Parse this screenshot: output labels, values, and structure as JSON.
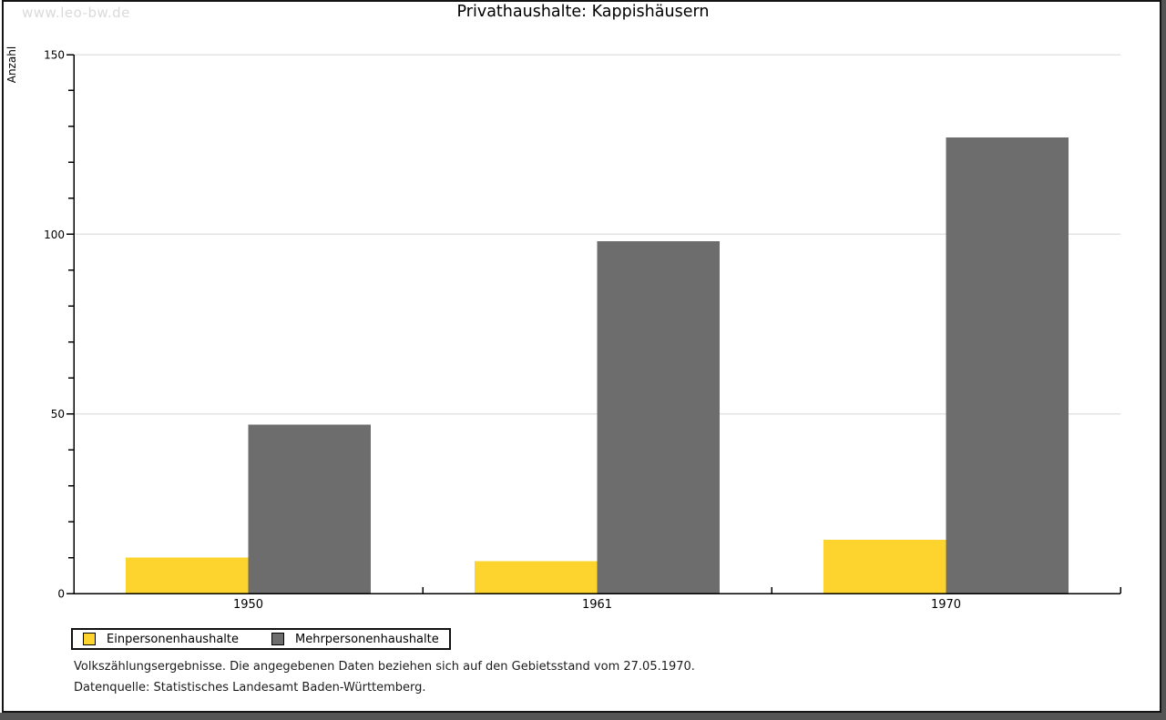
{
  "window": {
    "watermark": "www.leo-bw.de"
  },
  "chart_data": {
    "type": "bar",
    "title": "Privathaushalte: Kappishäusern",
    "ylabel": "Anzahl",
    "xlabel": "",
    "categories": [
      "1950",
      "1961",
      "1970"
    ],
    "series": [
      {
        "name": "Einpersonenhaushalte",
        "color": "#FCD42D",
        "values": [
          10,
          9,
          15
        ]
      },
      {
        "name": "Mehrpersonenhaushalte",
        "color": "#6D6D6D",
        "values": [
          47,
          98,
          127
        ]
      }
    ],
    "ylim": [
      0,
      150
    ],
    "yticks": [
      0,
      50,
      100,
      150
    ],
    "minor_tick_step": 10,
    "grid": true,
    "legend_position": "bottom-left"
  },
  "footer": {
    "source_note": "Volkszählungsergebnisse. Die angegebenen Daten beziehen sich auf den Gebietsstand vom 27.05.1970.",
    "data_source": "Datenquelle: Statistisches Landesamt Baden-Württemberg."
  },
  "colors": {
    "bar_yellow": "#FCD42D",
    "bar_gray": "#6D6D6D",
    "gridline": "#E3E3E3",
    "axis": "#000000",
    "watermark_gray": "#DADADA",
    "frame_border": "#141414",
    "window_band_gray": "#545454"
  }
}
